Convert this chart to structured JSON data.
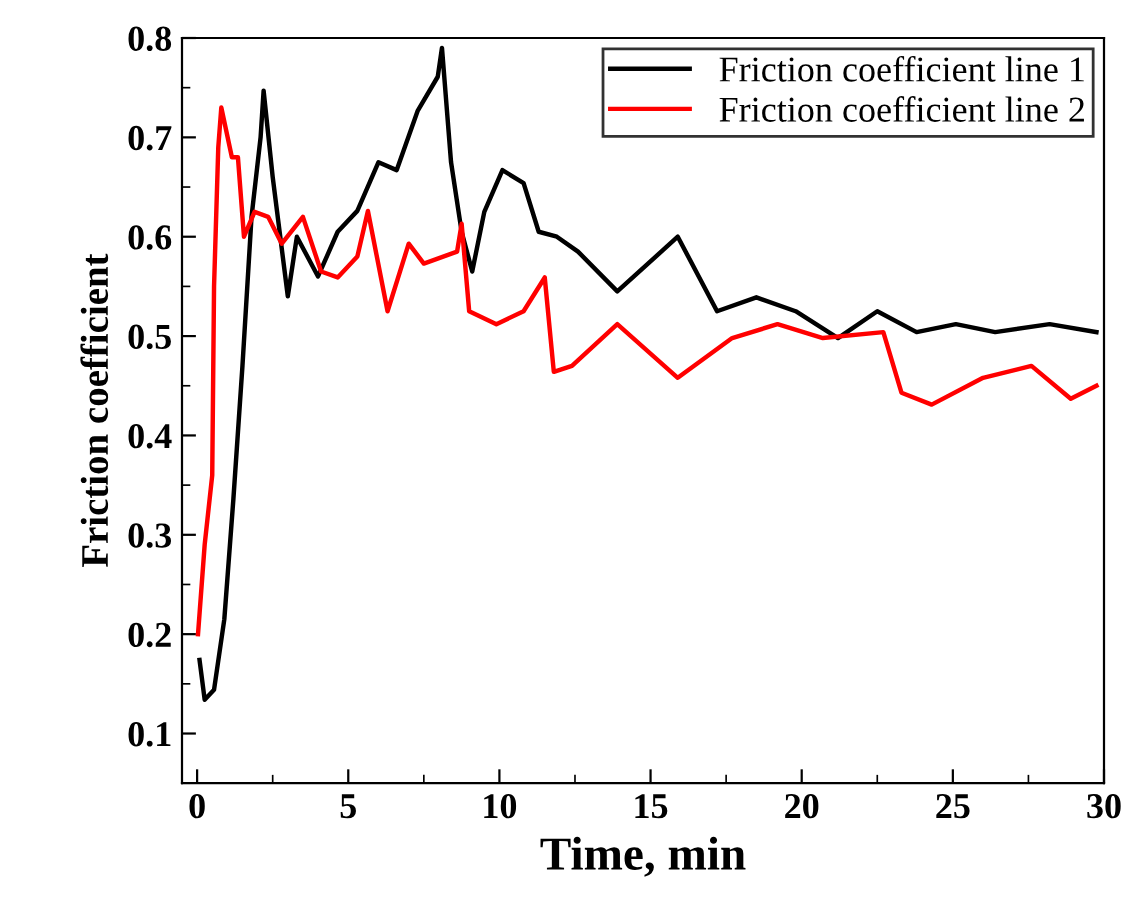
{
  "chart_data": {
    "type": "line",
    "xlabel": "Time, min",
    "ylabel": "Friction coefficient",
    "xlim": [
      -0.5,
      30
    ],
    "ylim": [
      0.05,
      0.8
    ],
    "xticks": [
      0,
      5,
      10,
      15,
      20,
      25,
      30
    ],
    "yticks": [
      0.1,
      0.2,
      0.3,
      0.4,
      0.5,
      0.6,
      0.7,
      0.8
    ],
    "grid": false,
    "legend": "top right",
    "marker": "none",
    "line_style": "solid",
    "series": [
      {
        "name": "Friction coefficient line 1",
        "color": "#000000",
        "x": [
          0.08,
          0.25,
          0.56,
          0.9,
          1.2,
          1.5,
          1.8,
          2.1,
          2.2,
          2.5,
          3.0,
          3.3,
          4.0,
          4.65,
          5.3,
          6.0,
          6.6,
          7.3,
          7.96,
          8.1,
          8.4,
          8.75,
          9.1,
          9.5,
          10.1,
          10.8,
          11.3,
          11.9,
          12.6,
          13.9,
          15.9,
          17.2,
          18.5,
          19.8,
          21.2,
          22.5,
          23.8,
          25.1,
          26.4,
          28.2,
          29.75
        ],
        "values": [
          0.174,
          0.134,
          0.144,
          0.215,
          0.336,
          0.47,
          0.62,
          0.7,
          0.747,
          0.66,
          0.54,
          0.6,
          0.56,
          0.605,
          0.626,
          0.675,
          0.667,
          0.727,
          0.761,
          0.79,
          0.675,
          0.605,
          0.565,
          0.625,
          0.667,
          0.654,
          0.605,
          0.6,
          0.585,
          0.545,
          0.6,
          0.525,
          0.539,
          0.525,
          0.498,
          0.525,
          0.504,
          0.512,
          0.504,
          0.512,
          0.504
        ]
      },
      {
        "name": "Friction coefficient line 2",
        "color": "#ff0000",
        "x": [
          0.03,
          0.25,
          0.5,
          0.56,
          0.7,
          0.8,
          1.15,
          1.35,
          1.55,
          1.9,
          2.35,
          2.8,
          3.5,
          4.1,
          4.65,
          5.3,
          5.65,
          6.3,
          7.0,
          7.5,
          8.6,
          8.75,
          9.0,
          9.9,
          10.8,
          11.5,
          11.8,
          12.4,
          13.9,
          15.9,
          17.7,
          19.2,
          20.7,
          22.7,
          23.3,
          24.3,
          26.0,
          27.6,
          28.9,
          29.75
        ],
        "values": [
          0.2,
          0.29,
          0.36,
          0.55,
          0.69,
          0.73,
          0.68,
          0.68,
          0.6,
          0.625,
          0.62,
          0.593,
          0.62,
          0.565,
          0.559,
          0.58,
          0.626,
          0.525,
          0.593,
          0.573,
          0.585,
          0.613,
          0.525,
          0.512,
          0.525,
          0.559,
          0.464,
          0.47,
          0.512,
          0.458,
          0.498,
          0.512,
          0.498,
          0.504,
          0.443,
          0.431,
          0.458,
          0.47,
          0.437,
          0.45
        ]
      }
    ]
  }
}
